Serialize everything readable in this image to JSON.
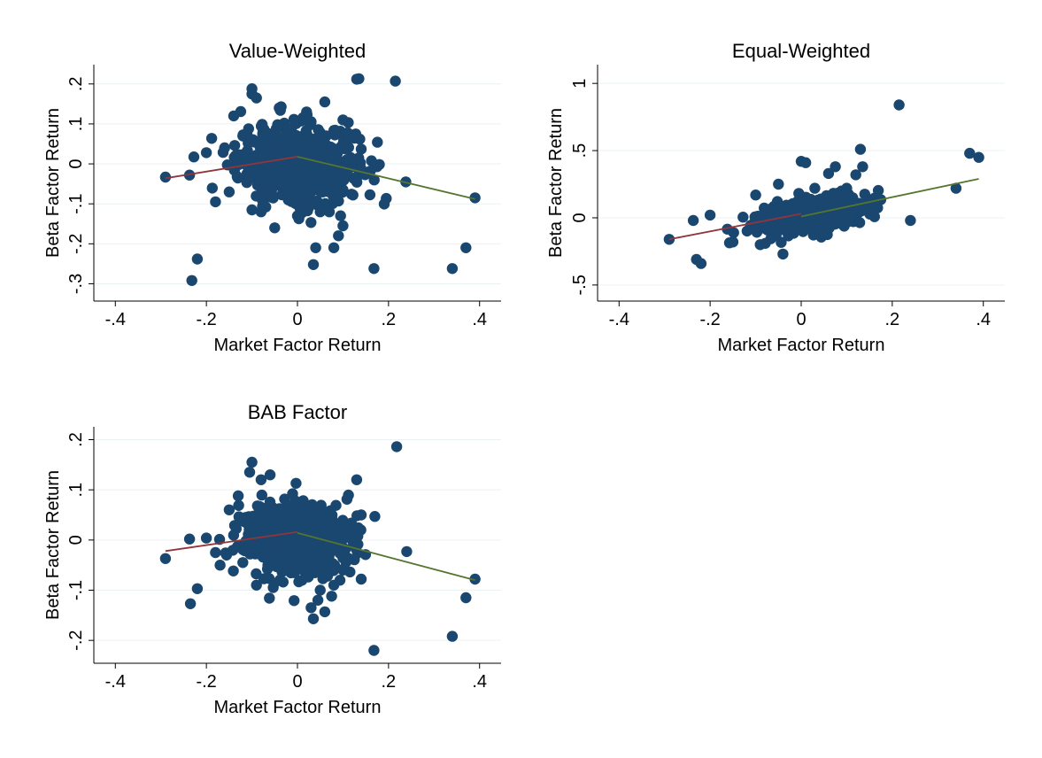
{
  "figure": {
    "background": "#ffffff",
    "marker_color": "#1a476f",
    "grid_color": "#eaf2f3",
    "left_line_color": "#90353b",
    "right_line_color": "#55752f"
  },
  "chart_data": [
    {
      "type": "scatter",
      "title": "Value-Weighted",
      "xlabel": "Market Factor Return",
      "ylabel": "Beta Factor Return",
      "xlim": [
        -0.42,
        0.42
      ],
      "ylim": [
        -0.33,
        0.235
      ],
      "xticks": [
        -0.4,
        -0.2,
        0,
        0.2,
        0.4
      ],
      "xtick_labels": [
        "-.4",
        "-.2",
        "0",
        ".2",
        ".4"
      ],
      "yticks": [
        -0.3,
        -0.2,
        -0.1,
        0,
        0.1,
        0.2
      ],
      "ytick_labels": [
        "-.3",
        "-.2",
        "-.1",
        "0",
        ".1",
        ".2"
      ],
      "grid": true,
      "cluster": {
        "center": [
          0.0,
          0.0
        ],
        "spread": [
          0.065,
          0.048
        ],
        "count": 650
      },
      "points": [
        [
          -0.29,
          -0.033
        ],
        [
          -0.237,
          -0.028
        ],
        [
          -0.22,
          -0.238
        ],
        [
          -0.232,
          -0.292
        ],
        [
          -0.2,
          0.028
        ],
        [
          -0.18,
          -0.095
        ],
        [
          -0.16,
          0.04
        ],
        [
          -0.14,
          0.12
        ],
        [
          -0.1,
          0.188
        ],
        [
          -0.1,
          0.175
        ],
        [
          -0.09,
          0.165
        ],
        [
          -0.12,
          0.07
        ],
        [
          -0.1,
          -0.115
        ],
        [
          -0.08,
          -0.12
        ],
        [
          -0.05,
          -0.16
        ],
        [
          -0.15,
          -0.07
        ],
        [
          0.13,
          0.212
        ],
        [
          0.135,
          0.213
        ],
        [
          0.215,
          0.207
        ],
        [
          0.06,
          0.155
        ],
        [
          0.1,
          0.11
        ],
        [
          0.11,
          0.078
        ],
        [
          0.14,
          0.037
        ],
        [
          0.16,
          -0.018
        ],
        [
          0.238,
          -0.045
        ],
        [
          0.39,
          -0.085
        ],
        [
          0.37,
          -0.21
        ],
        [
          0.34,
          -0.262
        ],
        [
          0.168,
          -0.262
        ],
        [
          0.04,
          -0.21
        ],
        [
          0.035,
          -0.252
        ],
        [
          0.08,
          -0.21
        ],
        [
          0.1,
          -0.155
        ],
        [
          0.09,
          -0.18
        ],
        [
          0.0,
          -0.13
        ],
        [
          -0.02,
          -0.09
        ],
        [
          0.05,
          -0.12
        ],
        [
          0.07,
          -0.12
        ],
        [
          -0.04,
          0.14
        ],
        [
          0.02,
          0.13
        ]
      ],
      "fit_lines": [
        {
          "segment": "left",
          "x": [
            -0.29,
            0.0
          ],
          "y": [
            -0.036,
            0.018
          ]
        },
        {
          "segment": "right",
          "x": [
            0.0,
            0.39
          ],
          "y": [
            0.018,
            -0.088
          ]
        }
      ]
    },
    {
      "type": "scatter",
      "title": "Equal-Weighted",
      "xlabel": "Market Factor Return",
      "ylabel": "Beta Factor Return",
      "xlim": [
        -0.42,
        0.42
      ],
      "ylim": [
        -0.58,
        1.1
      ],
      "xticks": [
        -0.4,
        -0.2,
        0,
        0.2,
        0.4
      ],
      "xtick_labels": [
        "-.4",
        "-.2",
        "0",
        ".2",
        ".4"
      ],
      "yticks": [
        -0.5,
        0,
        0.5,
        1
      ],
      "ytick_labels": [
        "-.5",
        "0",
        ".5",
        "1"
      ],
      "grid": true,
      "cluster": {
        "center": [
          0.02,
          0.02
        ],
        "spread": [
          0.055,
          0.055
        ],
        "count": 650,
        "slope": 0.45
      },
      "points": [
        [
          -0.29,
          -0.16
        ],
        [
          -0.237,
          -0.02
        ],
        [
          -0.23,
          -0.31
        ],
        [
          -0.22,
          -0.34
        ],
        [
          -0.2,
          0.02
        ],
        [
          -0.15,
          -0.18
        ],
        [
          -0.09,
          -0.2
        ],
        [
          -0.1,
          0.17
        ],
        [
          -0.05,
          0.25
        ],
        [
          -0.04,
          -0.27
        ],
        [
          0.0,
          0.42
        ],
        [
          0.01,
          0.41
        ],
        [
          0.06,
          0.33
        ],
        [
          0.075,
          0.38
        ],
        [
          0.13,
          0.51
        ],
        [
          0.135,
          0.38
        ],
        [
          0.12,
          0.32
        ],
        [
          0.215,
          0.84
        ],
        [
          0.165,
          0.15
        ],
        [
          0.155,
          0.07
        ],
        [
          0.24,
          -0.02
        ],
        [
          0.34,
          0.22
        ],
        [
          0.37,
          0.48
        ],
        [
          0.39,
          0.45
        ],
        [
          0.1,
          0.22
        ],
        [
          0.03,
          0.22
        ],
        [
          -0.02,
          -0.08
        ],
        [
          0.08,
          0.05
        ],
        [
          0.12,
          0.08
        ],
        [
          0.14,
          0.1
        ]
      ],
      "fit_lines": [
        {
          "segment": "left",
          "x": [
            -0.29,
            0.0
          ],
          "y": [
            -0.16,
            0.03
          ]
        },
        {
          "segment": "right",
          "x": [
            0.0,
            0.39
          ],
          "y": [
            0.01,
            0.29
          ]
        }
      ]
    },
    {
      "type": "scatter",
      "title": "BAB Factor",
      "xlabel": "Market Factor Return",
      "ylabel": "Beta Factor Return",
      "xlim": [
        -0.42,
        0.42
      ],
      "ylim": [
        -0.235,
        0.215
      ],
      "xticks": [
        -0.4,
        -0.2,
        0,
        0.2,
        0.4
      ],
      "xtick_labels": [
        "-.4",
        "-.2",
        "0",
        ".2",
        ".4"
      ],
      "yticks": [
        -0.2,
        -0.1,
        0,
        0.1,
        0.2
      ],
      "ytick_labels": [
        "-.2",
        "-.1",
        "0",
        ".1",
        ".2"
      ],
      "grid": true,
      "cluster": {
        "center": [
          0.0,
          0.0
        ],
        "spread": [
          0.06,
          0.035
        ],
        "count": 650
      },
      "points": [
        [
          -0.29,
          -0.037
        ],
        [
          -0.237,
          0.002
        ],
        [
          -0.235,
          -0.127
        ],
        [
          -0.22,
          -0.097
        ],
        [
          -0.2,
          0.004
        ],
        [
          -0.17,
          -0.05
        ],
        [
          -0.18,
          -0.025
        ],
        [
          -0.15,
          0.06
        ],
        [
          -0.13,
          0.088
        ],
        [
          -0.1,
          0.155
        ],
        [
          -0.105,
          0.135
        ],
        [
          -0.08,
          0.12
        ],
        [
          -0.06,
          0.13
        ],
        [
          -0.09,
          -0.09
        ],
        [
          -0.05,
          -0.03
        ],
        [
          0.218,
          0.186
        ],
        [
          0.13,
          0.12
        ],
        [
          0.17,
          0.047
        ],
        [
          0.14,
          0.05
        ],
        [
          0.24,
          -0.023
        ],
        [
          0.39,
          -0.078
        ],
        [
          0.37,
          -0.115
        ],
        [
          0.34,
          -0.192
        ],
        [
          0.168,
          -0.22
        ],
        [
          0.03,
          -0.135
        ],
        [
          0.035,
          -0.157
        ],
        [
          0.045,
          -0.12
        ],
        [
          0.06,
          -0.143
        ],
        [
          0.05,
          -0.1
        ],
        [
          0.075,
          -0.112
        ],
        [
          0.08,
          -0.09
        ],
        [
          0.14,
          -0.078
        ],
        [
          0.1,
          -0.06
        ],
        [
          0.01,
          -0.08
        ],
        [
          -0.12,
          -0.045
        ]
      ],
      "fit_lines": [
        {
          "segment": "left",
          "x": [
            -0.29,
            0.0
          ],
          "y": [
            -0.022,
            0.016
          ]
        },
        {
          "segment": "right",
          "x": [
            0.0,
            0.39
          ],
          "y": [
            0.014,
            -0.08
          ]
        }
      ]
    }
  ]
}
